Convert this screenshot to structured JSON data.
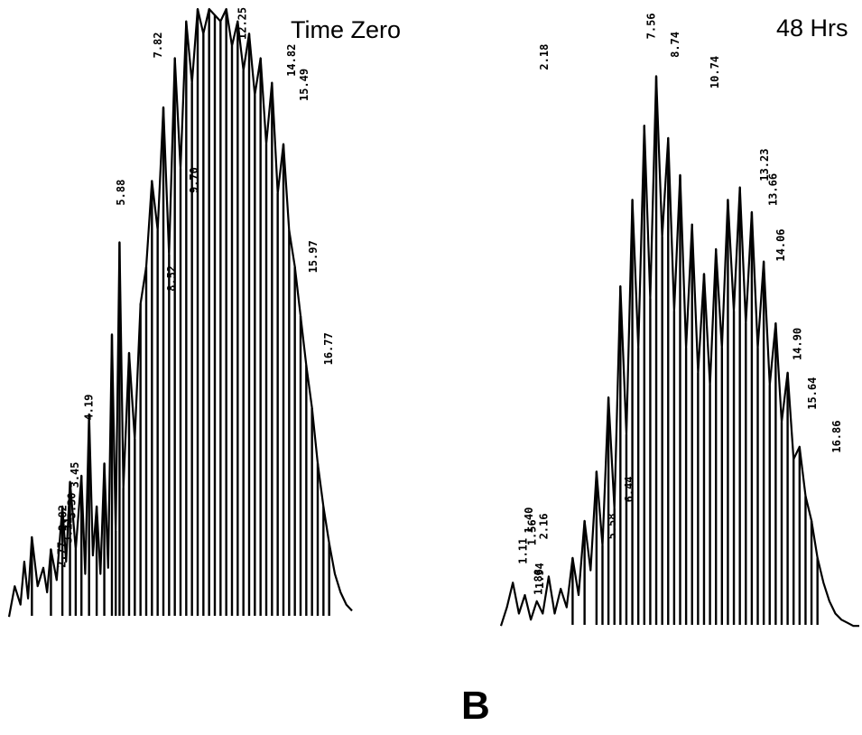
{
  "figure": {
    "panel_letter": "B"
  },
  "chart_data": [
    {
      "type": "line",
      "title": "Time Zero",
      "xlabel": "",
      "ylabel": "",
      "xlim": [
        0,
        18
      ],
      "ylim": [
        0,
        100
      ],
      "grid": false,
      "peak_labels": [
        {
          "rt": "16.77",
          "x": 16.77,
          "y": 42
        },
        {
          "rt": "15.97",
          "x": 15.97,
          "y": 57
        },
        {
          "rt": "15.49",
          "x": 15.49,
          "y": 85
        },
        {
          "rt": "14.82",
          "x": 14.82,
          "y": 89
        },
        {
          "rt": "12.25",
          "x": 12.25,
          "y": 95
        },
        {
          "rt": "9.70",
          "x": 9.7,
          "y": 70
        },
        {
          "rt": "8.52",
          "x": 8.52,
          "y": 54
        },
        {
          "rt": "7.82",
          "x": 7.82,
          "y": 92
        },
        {
          "rt": "5.88",
          "x": 5.88,
          "y": 68
        },
        {
          "rt": "4.19",
          "x": 4.19,
          "y": 33
        },
        {
          "rt": "3.45",
          "x": 3.45,
          "y": 22
        },
        {
          "rt": "3.30",
          "x": 3.3,
          "y": 17
        },
        {
          "rt": "3.11",
          "x": 3.11,
          "y": 13
        },
        {
          "rt": "2.82",
          "x": 2.82,
          "y": 15
        },
        {
          "rt": "2.77",
          "x": 2.77,
          "y": 9
        }
      ],
      "x": [
        0.0,
        0.3,
        0.6,
        0.8,
        1.0,
        1.2,
        1.5,
        1.8,
        2.0,
        2.2,
        2.5,
        2.8,
        3.0,
        3.2,
        3.5,
        3.8,
        4.0,
        4.2,
        4.4,
        4.6,
        4.8,
        5.0,
        5.2,
        5.4,
        5.6,
        5.8,
        6.0,
        6.3,
        6.6,
        6.9,
        7.2,
        7.5,
        7.8,
        8.1,
        8.4,
        8.7,
        9.0,
        9.3,
        9.6,
        9.9,
        10.2,
        10.5,
        10.8,
        11.1,
        11.4,
        11.7,
        12.0,
        12.3,
        12.6,
        12.9,
        13.2,
        13.5,
        13.8,
        14.1,
        14.4,
        14.7,
        15.0,
        15.3,
        15.6,
        15.9,
        16.2,
        16.5,
        16.8,
        17.1,
        17.4,
        17.7,
        18.0
      ],
      "y": [
        1,
        6,
        3,
        10,
        4,
        14,
        6,
        9,
        5,
        12,
        7,
        19,
        10,
        23,
        12,
        24,
        8,
        34,
        11,
        19,
        8,
        26,
        9,
        47,
        15,
        62,
        22,
        44,
        30,
        52,
        58,
        72,
        64,
        84,
        60,
        92,
        74,
        98,
        88,
        100,
        96,
        100,
        99,
        98,
        100,
        94,
        98,
        90,
        96,
        86,
        92,
        78,
        88,
        70,
        78,
        64,
        58,
        50,
        42,
        35,
        26,
        19,
        13,
        8,
        5,
        3,
        2
      ]
    },
    {
      "type": "line",
      "title": "48 Hrs",
      "xlabel": "",
      "ylabel": "",
      "xlim": [
        0,
        18
      ],
      "ylim": [
        0,
        100
      ],
      "grid": false,
      "peak_labels": [
        {
          "rt": "16.86",
          "x": 16.86,
          "y": 29
        },
        {
          "rt": "15.64",
          "x": 15.64,
          "y": 36
        },
        {
          "rt": "14.90",
          "x": 14.9,
          "y": 44
        },
        {
          "rt": "14.06",
          "x": 14.06,
          "y": 60
        },
        {
          "rt": "13.66",
          "x": 13.66,
          "y": 69
        },
        {
          "rt": "13.23",
          "x": 13.23,
          "y": 73
        },
        {
          "rt": "10.74",
          "x": 10.74,
          "y": 88
        },
        {
          "rt": "8.74",
          "x": 8.74,
          "y": 93
        },
        {
          "rt": "7.56",
          "x": 7.56,
          "y": 96
        },
        {
          "rt": "6.44",
          "x": 6.44,
          "y": 21
        },
        {
          "rt": "5.58",
          "x": 5.58,
          "y": 15
        },
        {
          "rt": "2.18",
          "x": 2.18,
          "y": 91
        },
        {
          "rt": "1.94",
          "x": 1.94,
          "y": 7
        },
        {
          "rt": "1.88",
          "x": 1.88,
          "y": 6
        },
        {
          "rt": "1.11",
          "x": 1.11,
          "y": 11
        },
        {
          "rt": "1.56",
          "x": 1.56,
          "y": 14
        },
        {
          "rt": "1.40",
          "x": 1.4,
          "y": 16
        },
        {
          "rt": "2.16",
          "x": 2.16,
          "y": 15
        }
      ],
      "x": [
        0.0,
        0.3,
        0.6,
        0.9,
        1.2,
        1.5,
        1.8,
        2.1,
        2.4,
        2.7,
        3.0,
        3.3,
        3.6,
        3.9,
        4.2,
        4.5,
        4.8,
        5.1,
        5.4,
        5.7,
        6.0,
        6.3,
        6.6,
        6.9,
        7.2,
        7.5,
        7.8,
        8.1,
        8.4,
        8.7,
        9.0,
        9.3,
        9.6,
        9.9,
        10.2,
        10.5,
        10.8,
        11.1,
        11.4,
        11.7,
        12.0,
        12.3,
        12.6,
        12.9,
        13.2,
        13.5,
        13.8,
        14.1,
        14.4,
        14.7,
        15.0,
        15.3,
        15.6,
        15.9,
        16.2,
        16.5,
        16.8,
        17.1,
        17.4,
        17.7,
        18.0
      ],
      "y": [
        1,
        4,
        8,
        3,
        6,
        2,
        5,
        3,
        9,
        3,
        7,
        4,
        12,
        6,
        18,
        10,
        26,
        14,
        38,
        20,
        56,
        32,
        70,
        46,
        82,
        54,
        90,
        64,
        80,
        52,
        74,
        46,
        66,
        42,
        58,
        40,
        62,
        46,
        70,
        52,
        72,
        50,
        68,
        46,
        60,
        40,
        50,
        34,
        42,
        28,
        30,
        22,
        18,
        12,
        8,
        5,
        3,
        2,
        1.5,
        1,
        1
      ]
    }
  ]
}
